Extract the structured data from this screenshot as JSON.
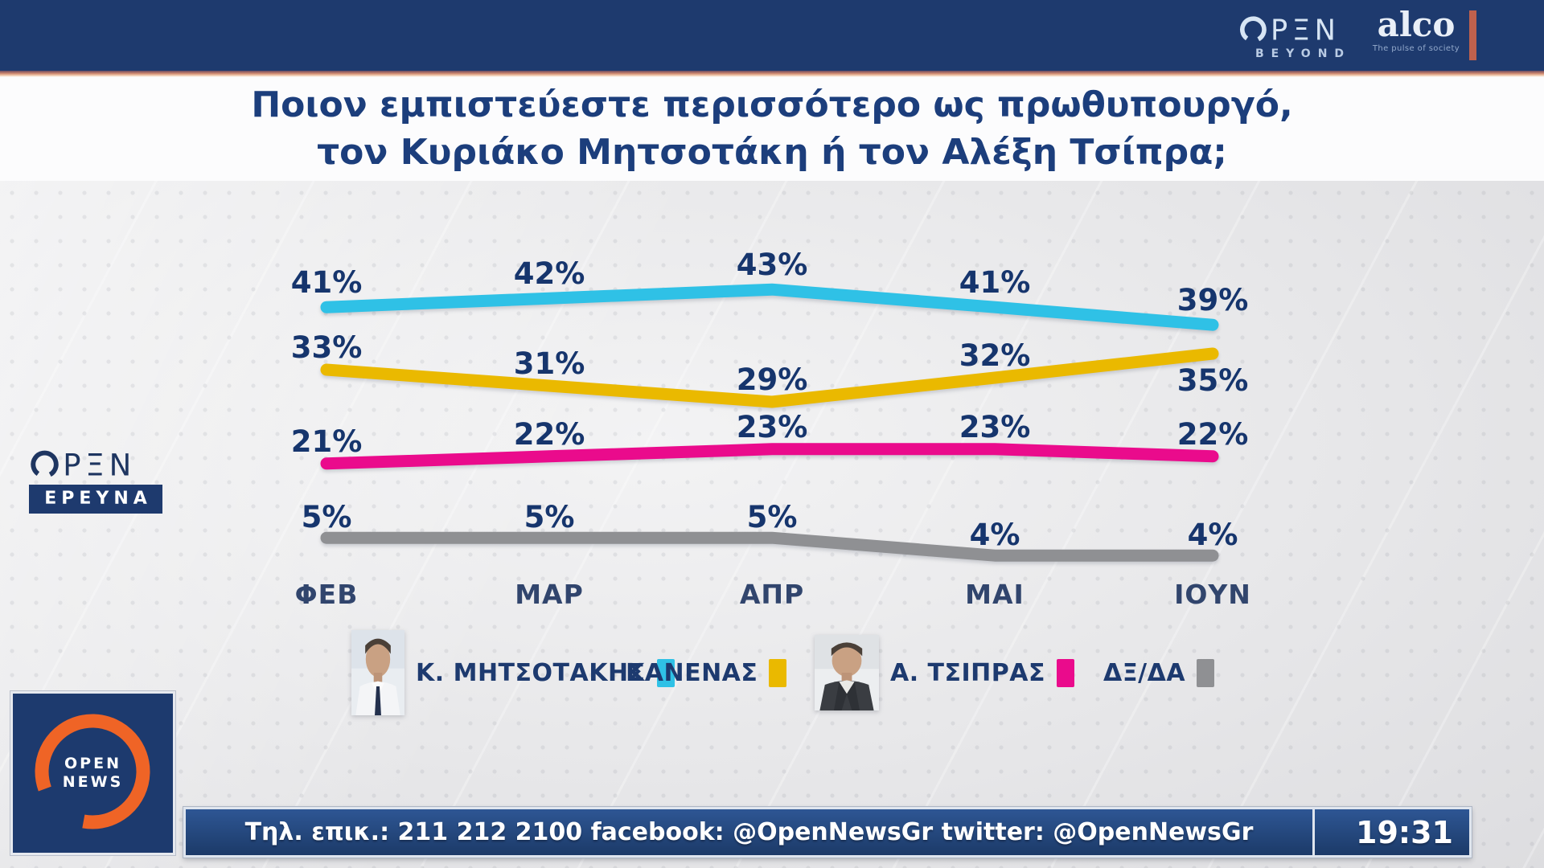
{
  "header": {
    "open_logo_text": "OPEN",
    "open_sub": "BEYOND",
    "alco_brand": "alco",
    "alco_tagline": "The pulse of society"
  },
  "title": {
    "line1": "Ποιον εμπιστεύεστε περισσότερο ως πρωθυπουργό,",
    "line2": "τον Κυριάκο Μητσοτάκη ή τον Αλέξη Τσίπρα;"
  },
  "chart_data": {
    "type": "line",
    "categories": [
      "ΦΕΒ",
      "ΜΑΡ",
      "ΑΠΡ",
      "ΜΑΙ",
      "ΙΟΥΝ"
    ],
    "series": [
      {
        "name": "Κ. ΜΗΤΣΟΤΑΚΗΣ",
        "color": "#2fc1e6",
        "values": [
          41,
          42,
          43,
          41,
          39
        ]
      },
      {
        "name": "ΚΑΝΕΝΑΣ",
        "color": "#eab900",
        "values": [
          33,
          31,
          29,
          32,
          35
        ]
      },
      {
        "name": "Α. ΤΣΙΠΡΑΣ",
        "color": "#ea0b8c",
        "values": [
          21,
          22,
          23,
          23,
          22
        ]
      },
      {
        "name": "ΔΞ/ΔΑ",
        "color": "#8f9093",
        "values": [
          5,
          5,
          5,
          4,
          4
        ]
      }
    ],
    "value_suffix": "%",
    "ylim": [
      0,
      50
    ],
    "grid": false,
    "legend_position": "bottom"
  },
  "ereyna_logo": {
    "brand": "OPEN",
    "label": "ΕΡΕΥΝΑ"
  },
  "news_logo": {
    "line1": "OPEN",
    "line2": "NEWS"
  },
  "footer": {
    "info": "Τηλ. επικ.: 211 212 2100 facebook: @OpenNewsGr twitter: @OpenNewsGr",
    "time": "19:31"
  }
}
